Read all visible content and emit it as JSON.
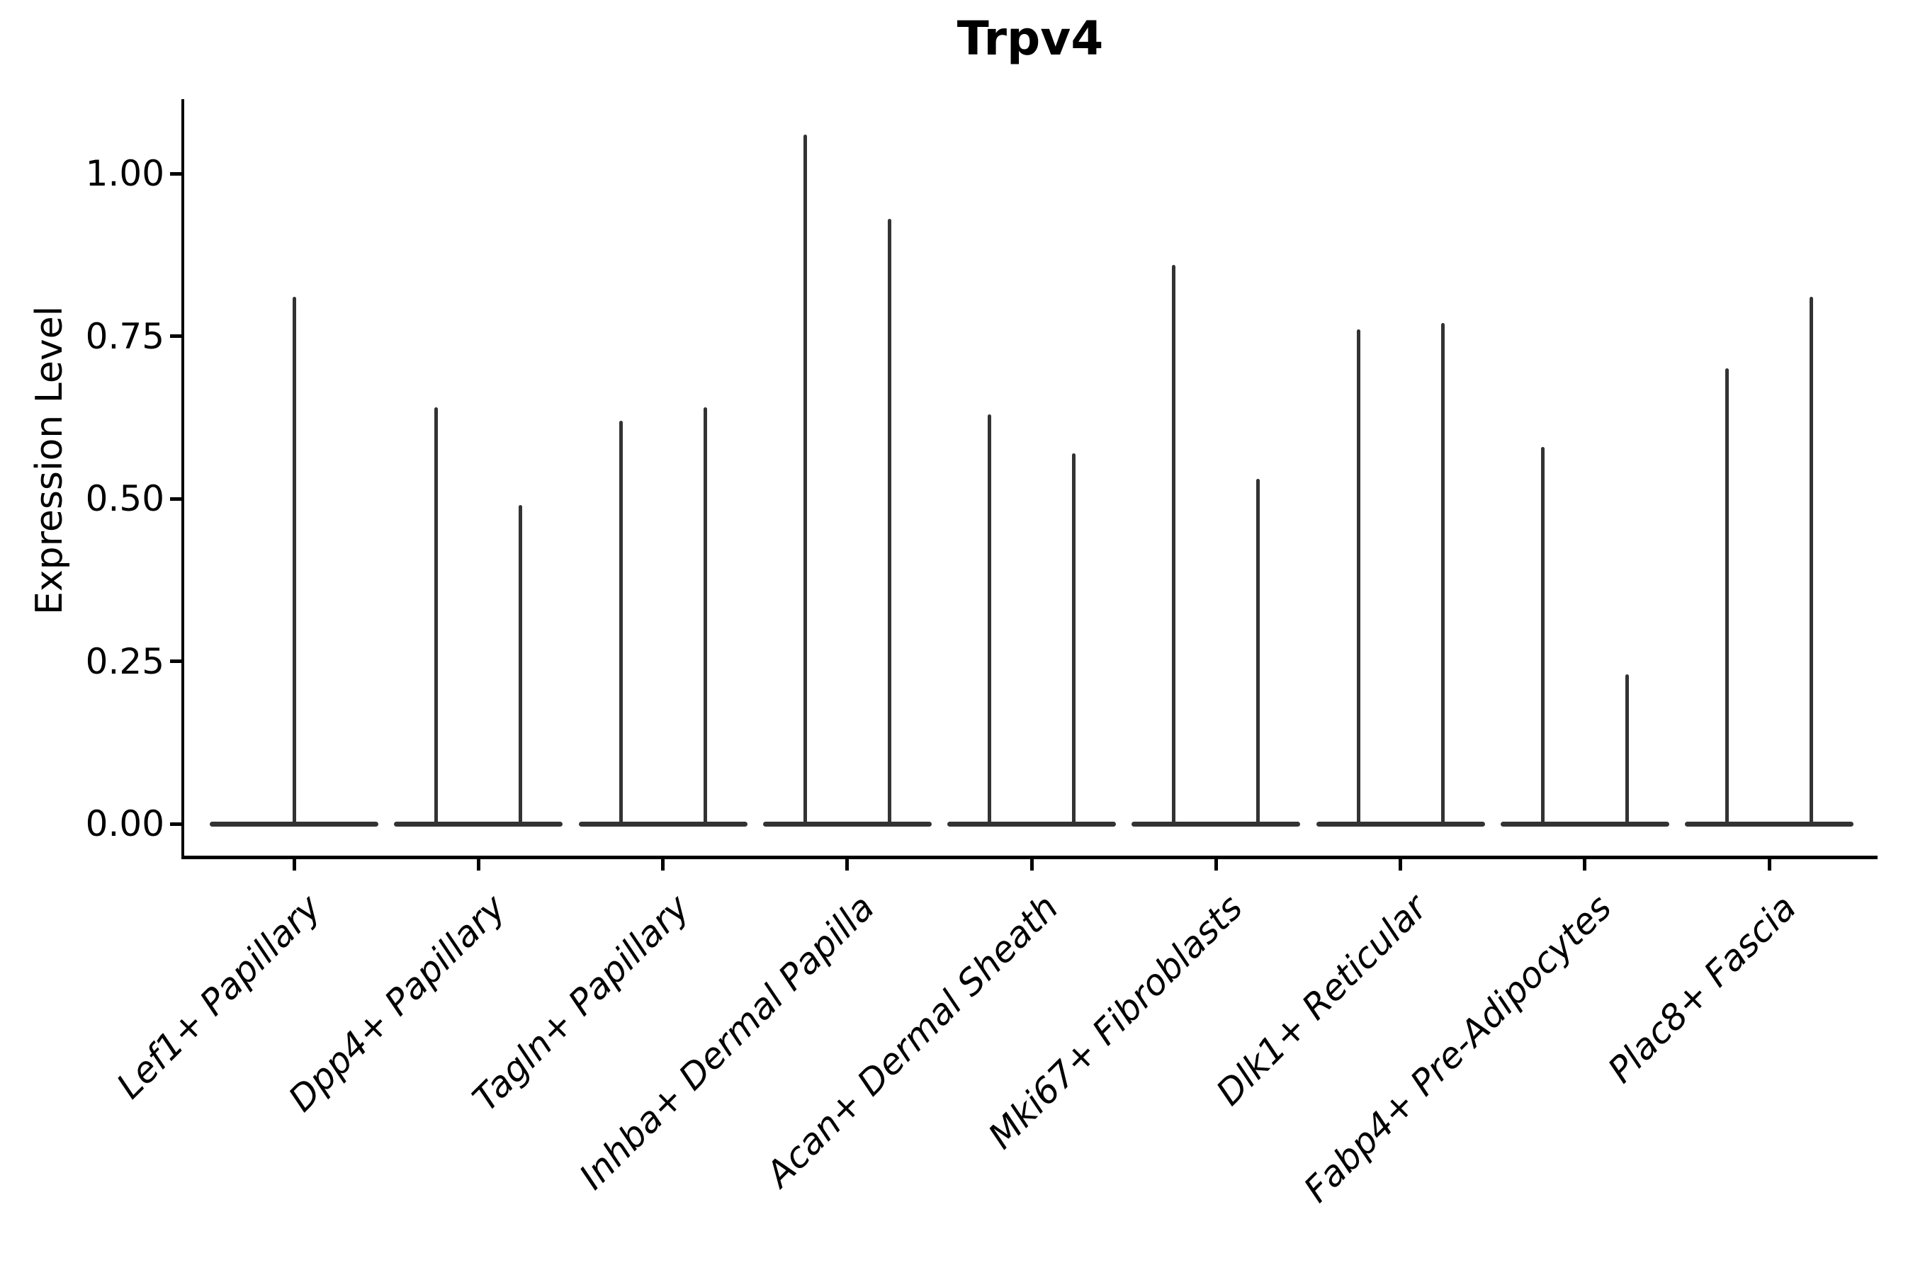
{
  "title": "Trpv4",
  "chart_data": {
    "type": "violin",
    "title": "Trpv4",
    "xlabel": "",
    "ylabel": "Expression Level",
    "ylim": [
      -0.05,
      1.12
    ],
    "grid": false,
    "legend": "none",
    "yticks": [
      "0.00",
      "0.25",
      "0.50",
      "0.75",
      "1.00"
    ],
    "ytick_values": [
      0.0,
      0.25,
      0.5,
      0.75,
      1.0
    ],
    "categories": [
      "Lef1+ Papillary",
      "Dpp4+ Papillary",
      "Tagln+ Papillary",
      "Inhba+ Dermal Papilla",
      "Acan+ Dermal Sheath",
      "Mki67+ Fibroblasts",
      "Dlk1+ Reticular",
      "Fabp4+ Pre-Adipocytes",
      "Plac8+ Fascia"
    ],
    "groups": [
      {
        "category": "Lef1+ Papillary",
        "violins": [
          {
            "position": "center",
            "max": 0.81
          }
        ]
      },
      {
        "category": "Dpp4+ Papillary",
        "violins": [
          {
            "position": "left",
            "max": 0.64
          },
          {
            "position": "right",
            "max": 0.49
          }
        ]
      },
      {
        "category": "Tagln+ Papillary",
        "violins": [
          {
            "position": "left",
            "max": 0.62
          },
          {
            "position": "right",
            "max": 0.64
          }
        ]
      },
      {
        "category": "Inhba+ Dermal Papilla",
        "violins": [
          {
            "position": "left",
            "max": 1.06
          },
          {
            "position": "right",
            "max": 0.93
          }
        ]
      },
      {
        "category": "Acan+ Dermal Sheath",
        "violins": [
          {
            "position": "left",
            "max": 0.63
          },
          {
            "position": "right",
            "max": 0.57
          }
        ]
      },
      {
        "category": "Mki67+ Fibroblasts",
        "violins": [
          {
            "position": "left",
            "max": 0.86
          },
          {
            "position": "right",
            "max": 0.53
          }
        ]
      },
      {
        "category": "Dlk1+ Reticular",
        "violins": [
          {
            "position": "left",
            "max": 0.76
          },
          {
            "position": "right",
            "max": 0.77
          }
        ]
      },
      {
        "category": "Fabp4+ Pre-Adipocytes",
        "violins": [
          {
            "position": "left",
            "max": 0.58
          },
          {
            "position": "right",
            "max": 0.23
          }
        ]
      },
      {
        "category": "Plac8+ Fascia",
        "violins": [
          {
            "position": "left",
            "max": 0.7
          },
          {
            "position": "right",
            "max": 0.81
          }
        ]
      }
    ],
    "baseline_value": 0.0,
    "colors": {
      "violin": "#333333",
      "axis": "#000000",
      "text": "#000000",
      "background": "#ffffff"
    }
  }
}
